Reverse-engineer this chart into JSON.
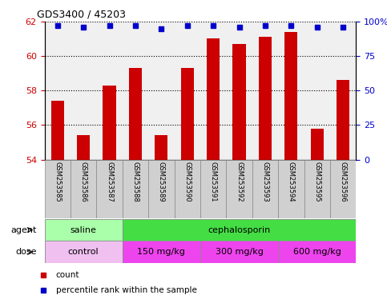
{
  "title": "GDS3400 / 45203",
  "samples": [
    "GSM253585",
    "GSM253586",
    "GSM253587",
    "GSM253588",
    "GSM253589",
    "GSM253590",
    "GSM253591",
    "GSM253592",
    "GSM253593",
    "GSM253594",
    "GSM253595",
    "GSM253596"
  ],
  "bar_values": [
    57.4,
    55.4,
    58.3,
    59.3,
    55.4,
    59.3,
    61.0,
    60.7,
    61.1,
    61.4,
    55.8,
    58.6
  ],
  "percentile_values": [
    97,
    96,
    97,
    97,
    95,
    97,
    97,
    96,
    97,
    97,
    96,
    96
  ],
  "bar_color": "#cc0000",
  "percentile_color": "#0000cc",
  "ylim_left": [
    54,
    62
  ],
  "ylim_right": [
    0,
    100
  ],
  "yticks_left": [
    54,
    56,
    58,
    60,
    62
  ],
  "yticks_right": [
    0,
    25,
    50,
    75,
    100
  ],
  "ytick_labels_right": [
    "0",
    "25",
    "50",
    "75",
    "100%"
  ],
  "agent_groups": [
    {
      "label": "saline",
      "start": 0,
      "end": 3,
      "color": "#aaffaa"
    },
    {
      "label": "cephalosporin",
      "start": 3,
      "end": 12,
      "color": "#44dd44"
    }
  ],
  "dose_groups": [
    {
      "label": "control",
      "start": 0,
      "end": 3,
      "color": "#f0c0f0"
    },
    {
      "label": "150 mg/kg",
      "start": 3,
      "end": 6,
      "color": "#ee44ee"
    },
    {
      "label": "300 mg/kg",
      "start": 6,
      "end": 9,
      "color": "#ee44ee"
    },
    {
      "label": "600 mg/kg",
      "start": 9,
      "end": 12,
      "color": "#ee44ee"
    }
  ],
  "legend_items": [
    {
      "label": "count",
      "color": "#cc0000"
    },
    {
      "label": "percentile rank within the sample",
      "color": "#0000cc"
    }
  ],
  "plot_bg": "#f0f0f0",
  "bar_width": 0.5,
  "tick_label_color_left": "#cc0000",
  "tick_label_color_right": "#0000cc",
  "label_box_color": "#d0d0d0",
  "arrow_color": "#555555"
}
